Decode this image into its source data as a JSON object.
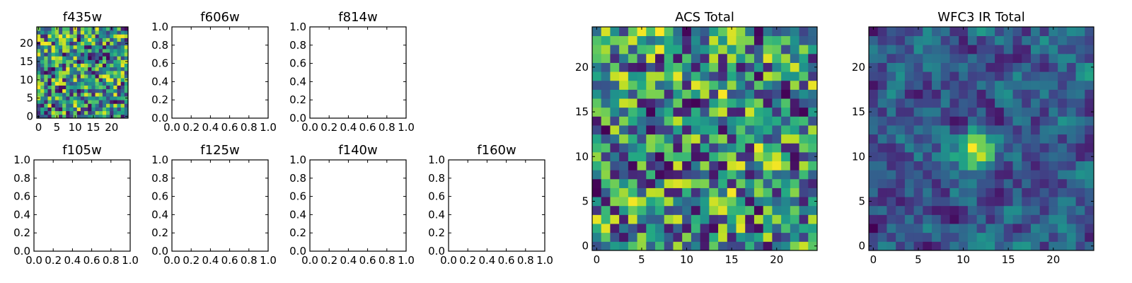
{
  "figure": {
    "background": "#ffffff"
  },
  "chart_data": [
    {
      "id": "f435w",
      "type": "heatmap",
      "title": "f435w",
      "xlim": [
        -0.5,
        24.5
      ],
      "ylim": [
        -0.5,
        24.5
      ],
      "xticks": [
        "0",
        "5",
        "10",
        "15",
        "20"
      ],
      "yticks": [
        "0",
        "5",
        "10",
        "15",
        "20"
      ],
      "grid_size": [
        25,
        25
      ],
      "colormap": "viridis",
      "seed": 11,
      "smooth": 0.1
    },
    {
      "id": "f606w",
      "type": "empty",
      "title": "f606w",
      "xticks": [
        "0.0",
        "0.2",
        "0.4",
        "0.6",
        "0.8",
        "1.0"
      ],
      "yticks": [
        "0.0",
        "0.2",
        "0.4",
        "0.6",
        "0.8",
        "1.0"
      ]
    },
    {
      "id": "f814w",
      "type": "empty",
      "title": "f814w",
      "xticks": [
        "0.0",
        "0.2",
        "0.4",
        "0.6",
        "0.8",
        "1.0"
      ],
      "yticks": [
        "0.0",
        "0.2",
        "0.4",
        "0.6",
        "0.8",
        "1.0"
      ]
    },
    {
      "id": "f105w",
      "type": "empty",
      "title": "f105w",
      "xticks": [
        "0.0",
        "0.2",
        "0.4",
        "0.6",
        "0.8",
        "1.0"
      ],
      "yticks": [
        "0.0",
        "0.2",
        "0.4",
        "0.6",
        "0.8",
        "1.0"
      ]
    },
    {
      "id": "f125w",
      "type": "empty",
      "title": "f125w",
      "xticks": [
        "0.0",
        "0.2",
        "0.4",
        "0.6",
        "0.8",
        "1.0"
      ],
      "yticks": [
        "0.0",
        "0.2",
        "0.4",
        "0.6",
        "0.8",
        "1.0"
      ]
    },
    {
      "id": "f140w",
      "type": "empty",
      "title": "f140w",
      "xticks": [
        "0.0",
        "0.2",
        "0.4",
        "0.6",
        "0.8",
        "1.0"
      ],
      "yticks": [
        "0.0",
        "0.2",
        "0.4",
        "0.6",
        "0.8",
        "1.0"
      ]
    },
    {
      "id": "f160w",
      "type": "empty",
      "title": "f160w",
      "xticks": [
        "0.0",
        "0.2",
        "0.4",
        "0.6",
        "0.8",
        "1.0"
      ],
      "yticks": [
        "0.0",
        "0.2",
        "0.4",
        "0.6",
        "0.8",
        "1.0"
      ]
    },
    {
      "id": "acs-total",
      "type": "heatmap",
      "title": "ACS Total",
      "xlim": [
        -0.5,
        24.5
      ],
      "ylim": [
        -0.5,
        24.5
      ],
      "xticks": [
        "0",
        "5",
        "10",
        "15",
        "20"
      ],
      "yticks": [
        "0",
        "5",
        "10",
        "15",
        "20"
      ],
      "grid_size": [
        25,
        25
      ],
      "colormap": "viridis",
      "seed": 23,
      "smooth": 0.25
    },
    {
      "id": "wfc3-ir-total",
      "type": "heatmap",
      "title": "WFC3 IR Total",
      "xlim": [
        -0.5,
        24.5
      ],
      "ylim": [
        -0.5,
        24.5
      ],
      "xticks": [
        "0",
        "5",
        "10",
        "15",
        "20"
      ],
      "yticks": [
        "0",
        "5",
        "10",
        "15",
        "20"
      ],
      "grid_size": [
        25,
        25
      ],
      "colormap": "viridis",
      "seed": 41,
      "smooth": 0.6,
      "source_center": [
        11.5,
        10.5
      ]
    }
  ]
}
